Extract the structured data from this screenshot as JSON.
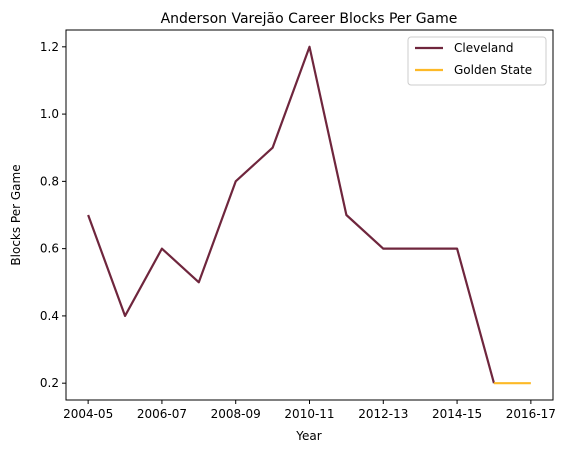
{
  "chart_data": {
    "type": "line",
    "title": "Anderson Varejão Career Blocks Per Game",
    "xlabel": "Year",
    "ylabel": "Blocks Per Game",
    "x_tick_labels": [
      "2004-05",
      "2006-07",
      "2008-09",
      "2010-11",
      "2012-13",
      "2014-15",
      "2016-17"
    ],
    "y_tick_labels": [
      "0.2",
      "0.4",
      "0.6",
      "0.8",
      "1.0",
      "1.2"
    ],
    "ylim": [
      0.15,
      1.25
    ],
    "grid": false,
    "legend_position": "top-right",
    "series": [
      {
        "name": "Cleveland",
        "color": "#6f263d",
        "x": [
          "2004-05",
          "2005-06",
          "2006-07",
          "2007-08",
          "2008-09",
          "2009-10",
          "2010-11",
          "2011-12",
          "2012-13",
          "2013-14",
          "2014-15",
          "2015-16"
        ],
        "values": [
          0.7,
          0.4,
          0.6,
          0.5,
          0.8,
          0.9,
          1.2,
          0.7,
          0.6,
          0.6,
          0.6,
          0.2
        ]
      },
      {
        "name": "Golden State",
        "color": "#fdb927",
        "x": [
          "2015-16",
          "2016-17"
        ],
        "values": [
          0.2,
          0.2
        ]
      }
    ]
  }
}
